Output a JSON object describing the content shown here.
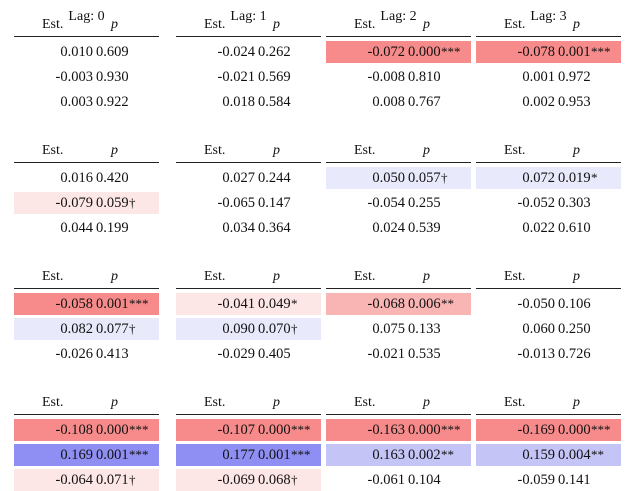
{
  "lag_labels": [
    "Lag: 0",
    "Lag: 1",
    "Lag: 2",
    "Lag: 3"
  ],
  "col_est": "Est.",
  "col_p": "p",
  "colors": {
    "neg_strong": "#f78b8b",
    "neg_medium": "#f9b4b4",
    "neg_light": "#fde6e6",
    "pos_strong": "#8e8ef3",
    "pos_medium": "#c4c4f7",
    "pos_light": "#e9e9fc"
  },
  "blocks": [
    [
      [
        {
          "est": "0.010",
          "p": "0.609",
          "sig": "",
          "shade": ""
        },
        {
          "est": "-0.003",
          "p": "0.930",
          "sig": "",
          "shade": ""
        },
        {
          "est": "0.003",
          "p": "0.922",
          "sig": "",
          "shade": ""
        }
      ],
      [
        {
          "est": "-0.024",
          "p": "0.262",
          "sig": "",
          "shade": ""
        },
        {
          "est": "-0.021",
          "p": "0.569",
          "sig": "",
          "shade": ""
        },
        {
          "est": "0.018",
          "p": "0.584",
          "sig": "",
          "shade": ""
        }
      ],
      [
        {
          "est": "-0.072",
          "p": "0.000",
          "sig": "***",
          "shade": "neg_strong"
        },
        {
          "est": "-0.008",
          "p": "0.810",
          "sig": "",
          "shade": ""
        },
        {
          "est": "0.008",
          "p": "0.767",
          "sig": "",
          "shade": ""
        }
      ],
      [
        {
          "est": "-0.078",
          "p": "0.001",
          "sig": "***",
          "shade": "neg_strong"
        },
        {
          "est": "0.001",
          "p": "0.972",
          "sig": "",
          "shade": ""
        },
        {
          "est": "0.002",
          "p": "0.953",
          "sig": "",
          "shade": ""
        }
      ]
    ],
    [
      [
        {
          "est": "0.016",
          "p": "0.420",
          "sig": "",
          "shade": ""
        },
        {
          "est": "-0.079",
          "p": "0.059",
          "sig": "†",
          "shade": "neg_light"
        },
        {
          "est": "0.044",
          "p": "0.199",
          "sig": "",
          "shade": ""
        }
      ],
      [
        {
          "est": "0.027",
          "p": "0.244",
          "sig": "",
          "shade": ""
        },
        {
          "est": "-0.065",
          "p": "0.147",
          "sig": "",
          "shade": ""
        },
        {
          "est": "0.034",
          "p": "0.364",
          "sig": "",
          "shade": ""
        }
      ],
      [
        {
          "est": "0.050",
          "p": "0.057",
          "sig": "†",
          "shade": "pos_light"
        },
        {
          "est": "-0.054",
          "p": "0.255",
          "sig": "",
          "shade": ""
        },
        {
          "est": "0.024",
          "p": "0.539",
          "sig": "",
          "shade": ""
        }
      ],
      [
        {
          "est": "0.072",
          "p": "0.019",
          "sig": "*",
          "shade": "pos_light"
        },
        {
          "est": "-0.052",
          "p": "0.303",
          "sig": "",
          "shade": ""
        },
        {
          "est": "0.022",
          "p": "0.610",
          "sig": "",
          "shade": ""
        }
      ]
    ],
    [
      [
        {
          "est": "-0.058",
          "p": "0.001",
          "sig": "***",
          "shade": "neg_strong"
        },
        {
          "est": "0.082",
          "p": "0.077",
          "sig": "†",
          "shade": "pos_light"
        },
        {
          "est": "-0.026",
          "p": "0.413",
          "sig": "",
          "shade": ""
        }
      ],
      [
        {
          "est": "-0.041",
          "p": "0.049",
          "sig": "*",
          "shade": "neg_light"
        },
        {
          "est": "0.090",
          "p": "0.070",
          "sig": "†",
          "shade": "pos_light"
        },
        {
          "est": "-0.029",
          "p": "0.405",
          "sig": "",
          "shade": ""
        }
      ],
      [
        {
          "est": "-0.068",
          "p": "0.006",
          "sig": "**",
          "shade": "neg_medium"
        },
        {
          "est": "0.075",
          "p": "0.133",
          "sig": "",
          "shade": ""
        },
        {
          "est": "-0.021",
          "p": "0.535",
          "sig": "",
          "shade": ""
        }
      ],
      [
        {
          "est": "-0.050",
          "p": "0.106",
          "sig": "",
          "shade": ""
        },
        {
          "est": "0.060",
          "p": "0.250",
          "sig": "",
          "shade": ""
        },
        {
          "est": "-0.013",
          "p": "0.726",
          "sig": "",
          "shade": ""
        }
      ]
    ],
    [
      [
        {
          "est": "-0.108",
          "p": "0.000",
          "sig": "***",
          "shade": "neg_strong"
        },
        {
          "est": "0.169",
          "p": "0.001",
          "sig": "***",
          "shade": "pos_strong"
        },
        {
          "est": "-0.064",
          "p": "0.071",
          "sig": "†",
          "shade": "neg_light"
        }
      ],
      [
        {
          "est": "-0.107",
          "p": "0.000",
          "sig": "***",
          "shade": "neg_strong"
        },
        {
          "est": "0.177",
          "p": "0.001",
          "sig": "***",
          "shade": "pos_strong"
        },
        {
          "est": "-0.069",
          "p": "0.068",
          "sig": "†",
          "shade": "neg_light"
        }
      ],
      [
        {
          "est": "-0.163",
          "p": "0.000",
          "sig": "***",
          "shade": "neg_strong"
        },
        {
          "est": "0.163",
          "p": "0.002",
          "sig": "**",
          "shade": "pos_medium"
        },
        {
          "est": "-0.061",
          "p": "0.104",
          "sig": "",
          "shade": ""
        }
      ],
      [
        {
          "est": "-0.169",
          "p": "0.000",
          "sig": "***",
          "shade": "neg_strong"
        },
        {
          "est": "0.159",
          "p": "0.004",
          "sig": "**",
          "shade": "pos_medium"
        },
        {
          "est": "-0.059",
          "p": "0.141",
          "sig": "",
          "shade": ""
        }
      ]
    ]
  ]
}
